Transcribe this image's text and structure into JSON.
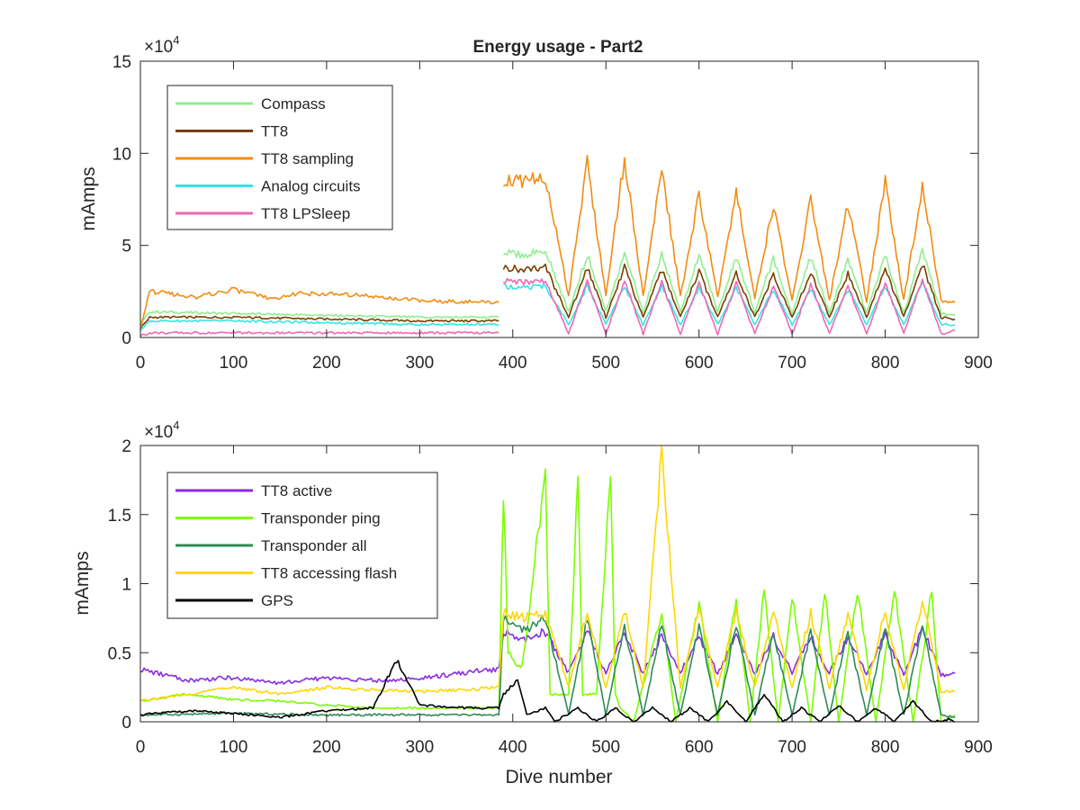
{
  "figure": {
    "title": "Energy usage - Part2",
    "background": "#ffffff",
    "axis_color": "#262626"
  },
  "chart_data": [
    {
      "type": "line",
      "title": "Energy usage - Part2",
      "xlabel": "",
      "ylabel": "mAmps",
      "xlim": [
        0,
        900
      ],
      "ylim": [
        0,
        150000
      ],
      "x_ticks": [
        "0",
        "100",
        "200",
        "300",
        "400",
        "500",
        "600",
        "700",
        "800",
        "900"
      ],
      "y_ticks": [
        "0",
        "5",
        "10",
        "15"
      ],
      "y_multiplier": "×10",
      "y_multiplier_exp": "4",
      "grid": false,
      "legend": "top-left",
      "x_max_dive": 875,
      "series": [
        {
          "name": "Compass",
          "color": "#90ee90",
          "segments": [
            {
              "x": [
                0,
                10,
                100,
                200,
                300,
                385
              ],
              "y": [
                8000,
                14000,
                13000,
                12000,
                11000,
                11000
              ]
            },
            {
              "x": [
                390,
                410,
                435,
                460,
                480,
                500,
                520,
                540,
                560,
                580,
                600,
                620,
                640,
                660,
                680,
                700,
                720,
                740,
                760,
                780,
                800,
                820,
                840,
                860,
                875
              ],
              "y": [
                46000,
                45000,
                47000,
                14000,
                45000,
                14000,
                46000,
                14000,
                45000,
                14000,
                45000,
                14000,
                44000,
                14000,
                43000,
                13000,
                44000,
                13000,
                43000,
                13000,
                45000,
                13000,
                48000,
                13000,
                12000
              ]
            }
          ]
        },
        {
          "name": "TT8",
          "color": "#7b3f00",
          "segments": [
            {
              "x": [
                0,
                10,
                100,
                200,
                300,
                385
              ],
              "y": [
                5000,
                11000,
                11000,
                10000,
                9000,
                9000
              ]
            },
            {
              "x": [
                390,
                410,
                435,
                460,
                480,
                500,
                520,
                540,
                560,
                580,
                600,
                620,
                640,
                660,
                680,
                700,
                720,
                740,
                760,
                780,
                800,
                820,
                840,
                860,
                875
              ],
              "y": [
                38000,
                37000,
                38000,
                11000,
                38000,
                11000,
                38000,
                11000,
                37000,
                11000,
                36000,
                11000,
                35000,
                11000,
                34000,
                11000,
                35000,
                11000,
                35000,
                11000,
                37000,
                11000,
                40000,
                11000,
                10000
              ]
            }
          ]
        },
        {
          "name": "TT8 sampling",
          "color": "#f28c13",
          "segments": [
            {
              "x": [
                0,
                10,
                60,
                100,
                140,
                170,
                230,
                300,
                385
              ],
              "y": [
                5000,
                25000,
                22000,
                26000,
                21000,
                24000,
                23000,
                20000,
                19000
              ]
            },
            {
              "x": [
                390,
                410,
                435,
                460,
                480,
                500,
                520,
                540,
                560,
                580,
                600,
                620,
                640,
                660,
                680,
                700,
                720,
                740,
                760,
                780,
                800,
                820,
                840,
                860,
                875
              ],
              "y": [
                86000,
                84000,
                88000,
                22000,
                95000,
                22000,
                98000,
                22000,
                92000,
                22000,
                78000,
                22000,
                78000,
                22000,
                72000,
                20000,
                75000,
                20000,
                72000,
                20000,
                84000,
                20000,
                83000,
                20000,
                19000
              ]
            }
          ]
        },
        {
          "name": "Analog circuits",
          "color": "#33e6e6",
          "segments": [
            {
              "x": [
                0,
                10,
                100,
                200,
                300,
                385
              ],
              "y": [
                4000,
                9000,
                9000,
                8000,
                7000,
                7000
              ]
            },
            {
              "x": [
                390,
                410,
                435,
                460,
                480,
                500,
                520,
                540,
                560,
                580,
                600,
                620,
                640,
                660,
                680,
                700,
                720,
                740,
                760,
                780,
                800,
                820,
                840,
                860,
                875
              ],
              "y": [
                28000,
                27000,
                28000,
                7000,
                28000,
                7000,
                28000,
                7000,
                28000,
                7000,
                27000,
                7000,
                27000,
                7000,
                26000,
                7000,
                26000,
                7000,
                26000,
                7000,
                28000,
                7000,
                30000,
                7000,
                7000
              ]
            }
          ]
        },
        {
          "name": "TT8 LPSleep",
          "color": "#ee69b4",
          "segments": [
            {
              "x": [
                0,
                10,
                100,
                200,
                300,
                385
              ],
              "y": [
                1000,
                2500,
                2500,
                2500,
                2500,
                2500
              ]
            },
            {
              "x": [
                390,
                410,
                435,
                460,
                480,
                500,
                520,
                540,
                560,
                580,
                600,
                620,
                640,
                660,
                680,
                700,
                720,
                740,
                760,
                780,
                800,
                820,
                840,
                860,
                875
              ],
              "y": [
                31000,
                30000,
                31000,
                2000,
                31000,
                2000,
                31000,
                2000,
                30000,
                2000,
                30000,
                2000,
                29000,
                2000,
                28000,
                2000,
                29000,
                2000,
                28000,
                2000,
                30000,
                2000,
                32000,
                2000,
                4000
              ]
            }
          ]
        }
      ]
    },
    {
      "type": "line",
      "title": "",
      "xlabel": "Dive number",
      "ylabel": "mAmps",
      "xlim": [
        0,
        900
      ],
      "ylim": [
        0,
        20000
      ],
      "x_ticks": [
        "0",
        "100",
        "200",
        "300",
        "400",
        "500",
        "600",
        "700",
        "800",
        "900"
      ],
      "y_ticks": [
        "0",
        "0.5",
        "1",
        "1.5",
        "2"
      ],
      "y_multiplier": "×10",
      "y_multiplier_exp": "4",
      "grid": false,
      "legend": "top-left",
      "series": [
        {
          "name": "TT8 active",
          "color": "#8a2be2",
          "segments": [
            {
              "x": [
                0,
                50,
                100,
                150,
                200,
                250,
                300,
                350,
                385,
                390,
                410,
                435,
                460,
                480,
                500,
                520,
                540,
                560,
                580,
                600,
                620,
                640,
                660,
                680,
                700,
                720,
                740,
                760,
                780,
                800,
                820,
                840,
                860,
                875
              ],
              "y": [
                3800,
                3000,
                3200,
                2800,
                3200,
                3000,
                3100,
                3600,
                3800,
                6500,
                6000,
                6500,
                3500,
                6500,
                3500,
                6500,
                3500,
                6200,
                3500,
                6200,
                3500,
                6200,
                3500,
                6200,
                3500,
                6200,
                3500,
                6200,
                3500,
                6300,
                3400,
                6800,
                3400,
                3500
              ]
            }
          ]
        },
        {
          "name": "Transponder ping",
          "color": "#7cfc00",
          "segments": [
            {
              "x": [
                0,
                50,
                100,
                150,
                200,
                250,
                300,
                350,
                385,
                390,
                395,
                405,
                410,
                435,
                440,
                445,
                460,
                470,
                475,
                490,
                505,
                510,
                515,
                530,
                560,
                575,
                600,
                620,
                640,
                655,
                670,
                685,
                700,
                720,
                735,
                750,
                770,
                790,
                810,
                830,
                850,
                860,
                875
              ],
              "y": [
                1500,
                2000,
                1600,
                1500,
                1200,
                1000,
                1000,
                1000,
                1000,
                16800,
                5000,
                4000,
                4000,
                18000,
                2000,
                2000,
                2000,
                18000,
                2000,
                2000,
                18000,
                2000,
                1000,
                0,
                8000,
                0,
                8500,
                0,
                9000,
                0,
                9500,
                0,
                9000,
                0,
                9500,
                0,
                9500,
                0,
                9500,
                0,
                9500,
                0,
                500
              ]
            }
          ]
        },
        {
          "name": "Transponder all",
          "color": "#2e8b57",
          "segments": [
            {
              "x": [
                0,
                100,
                200,
                300,
                385,
                390,
                410,
                435,
                460,
                480,
                500,
                520,
                540,
                560,
                580,
                600,
                620,
                640,
                660,
                680,
                700,
                720,
                740,
                760,
                780,
                800,
                820,
                840,
                860,
                875
              ],
              "y": [
                500,
                600,
                500,
                500,
                500,
                7500,
                6500,
                7500,
                500,
                7500,
                500,
                7000,
                500,
                7000,
                500,
                7000,
                500,
                7000,
                500,
                6500,
                500,
                6500,
                500,
                6500,
                500,
                6800,
                500,
                7000,
                500,
                300
              ]
            }
          ]
        },
        {
          "name": "TT8 accessing flash",
          "color": "#ffd700",
          "segments": [
            {
              "x": [
                0,
                50,
                100,
                150,
                200,
                250,
                300,
                350,
                385,
                390,
                410,
                435,
                460,
                480,
                500,
                520,
                540,
                560,
                580,
                600,
                620,
                640,
                660,
                680,
                700,
                720,
                740,
                760,
                780,
                800,
                820,
                840,
                860,
                875
              ],
              "y": [
                1500,
                2000,
                2500,
                2000,
                2500,
                2300,
                2200,
                2300,
                2500,
                8000,
                7500,
                8000,
                2500,
                8000,
                2500,
                8000,
                2500,
                19500,
                2500,
                8000,
                2500,
                8000,
                2500,
                8000,
                2500,
                7800,
                2500,
                7800,
                2300,
                8000,
                2300,
                9000,
                2200,
                2200
              ]
            }
          ]
        },
        {
          "name": "GPS",
          "color": "#000000",
          "segments": [
            {
              "x": [
                0,
                50,
                100,
                150,
                200,
                250,
                275,
                300,
                350,
                385,
                390,
                405,
                415,
                435,
                445,
                470,
                490,
                510,
                530,
                550,
                570,
                590,
                610,
                630,
                650,
                670,
                690,
                710,
                730,
                750,
                770,
                790,
                810,
                830,
                850,
                870,
                875
              ],
              "y": [
                500,
                800,
                600,
                300,
                800,
                1000,
                4500,
                1200,
                1000,
                1000,
                2000,
                3000,
                500,
                1000,
                0,
                1000,
                0,
                1000,
                0,
                1000,
                0,
                1000,
                0,
                1500,
                0,
                2000,
                0,
                1000,
                0,
                1200,
                0,
                1000,
                0,
                1500,
                0,
                200,
                0
              ]
            }
          ]
        }
      ]
    }
  ]
}
